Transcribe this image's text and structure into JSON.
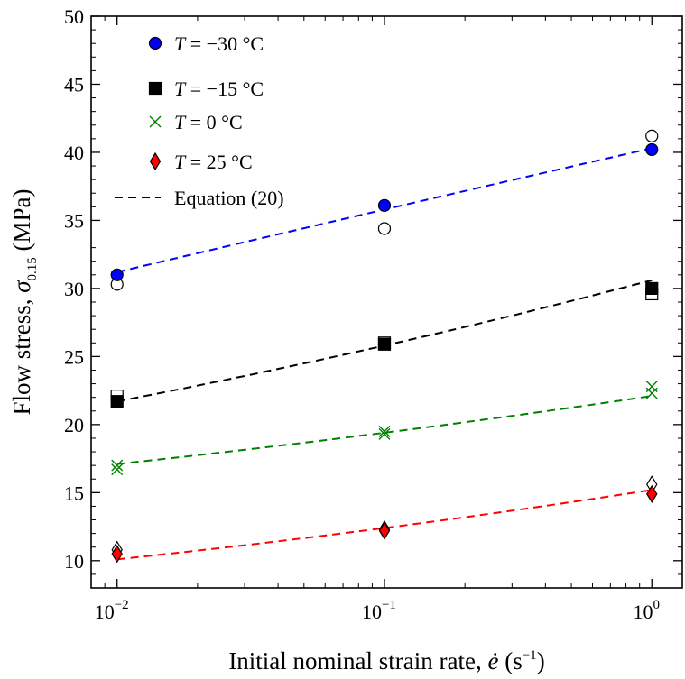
{
  "chart_data": {
    "type": "scatter",
    "x_scale": "log",
    "xlim": [
      0.008,
      1.3
    ],
    "ylim": [
      8,
      50
    ],
    "grid": false,
    "legend_position": "top-left",
    "xlabel": "Initial nominal strain rate, ė (s⁻¹)",
    "xlabel_parts": {
      "main": "Initial nominal strain rate, ",
      "symbol": "ė",
      "unit_open": " (s",
      "unit_sup": "−1",
      "unit_close": ")"
    },
    "ylabel": "Flow stress, σ₀.₁₅ (MPa)",
    "ylabel_parts": {
      "main": "Flow stress, ",
      "symbol": "σ",
      "sub": "0.15",
      "unit": " (MPa)"
    },
    "x_ticks": [
      {
        "value": 0.01,
        "base": "10",
        "exp": "−2"
      },
      {
        "value": 0.1,
        "base": "10",
        "exp": "−1"
      },
      {
        "value": 1,
        "base": "10",
        "exp": "0"
      }
    ],
    "y_ticks": [
      10,
      15,
      20,
      25,
      30,
      35,
      40,
      45,
      50
    ],
    "series": [
      {
        "name": "T = −30 °C",
        "name_parts": {
          "var": "T",
          "rest": " = −30 °C"
        },
        "color": "#0000ff",
        "marker": "circle",
        "x": [
          0.01,
          0.1,
          1
        ],
        "filled": [
          31.0,
          36.1,
          40.2
        ],
        "open": [
          30.3,
          34.4,
          41.2
        ],
        "fit": [
          31.2,
          35.8,
          40.3
        ]
      },
      {
        "name": "T = −15 °C",
        "name_parts": {
          "var": "T",
          "rest": " = −15 °C"
        },
        "color": "#000000",
        "marker": "square",
        "x": [
          0.01,
          0.1,
          1
        ],
        "filled": [
          21.7,
          25.9,
          30.0
        ],
        "open": [
          22.1,
          26.0,
          29.6
        ],
        "fit": [
          21.7,
          25.8,
          30.6
        ]
      },
      {
        "name": "T = 0 °C",
        "name_parts": {
          "var": "T",
          "rest": " = 0 °C"
        },
        "color": "#008000",
        "marker": "x",
        "x": [
          0.01,
          0.1,
          1
        ],
        "filled": [
          16.7,
          19.3,
          22.3
        ],
        "open": [
          17.0,
          19.5,
          22.8
        ],
        "fit": [
          17.1,
          19.4,
          22.1
        ]
      },
      {
        "name": "T = 25 °C",
        "name_parts": {
          "var": "T",
          "rest": " = 25 °C"
        },
        "color": "#ff0000",
        "marker": "diamond",
        "x": [
          0.01,
          0.1,
          1
        ],
        "filled": [
          10.5,
          12.2,
          14.9
        ],
        "open": [
          10.8,
          12.3,
          15.6
        ],
        "fit": [
          10.1,
          12.4,
          15.2
        ]
      }
    ],
    "equation_label": "Equation (20)",
    "fit_curve_x": [
      0.01,
      0.0178,
      0.0316,
      0.0562,
      0.1,
      0.178,
      0.316,
      0.562,
      1
    ]
  }
}
